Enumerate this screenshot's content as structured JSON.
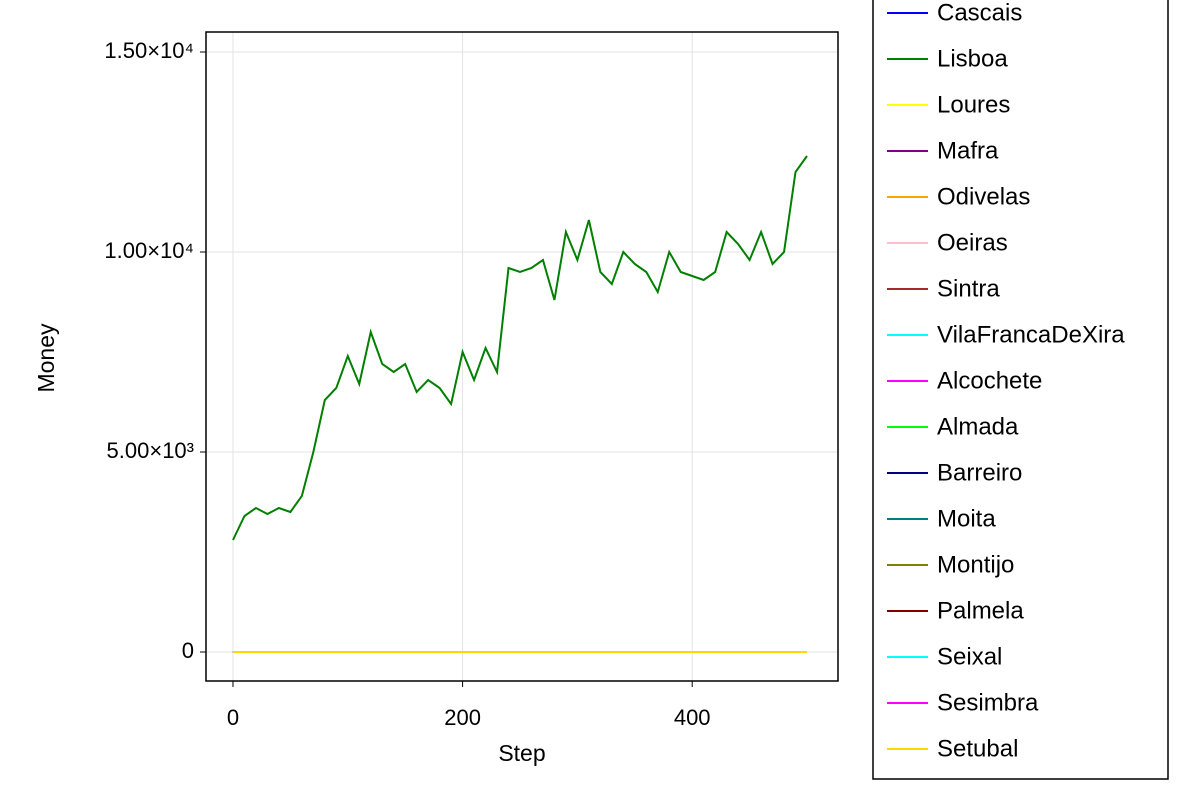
{
  "chart_data": {
    "type": "line",
    "xlabel": "Step",
    "ylabel": "Money",
    "xlim": [
      -23.5,
      527
    ],
    "ylim": [
      -725,
      15500
    ],
    "xticks": [
      0,
      200,
      400
    ],
    "yticks": [
      {
        "value": 0,
        "label": "0"
      },
      {
        "value": 5000,
        "label": "5.00×10³"
      },
      {
        "value": 10000,
        "label": "1.00×10⁴"
      },
      {
        "value": 15000,
        "label": "1.50×10⁴"
      }
    ],
    "grid": true,
    "legend": "outside right",
    "x": [
      0,
      10,
      20,
      30,
      40,
      50,
      60,
      70,
      80,
      90,
      100,
      110,
      120,
      130,
      140,
      150,
      160,
      170,
      180,
      190,
      200,
      210,
      220,
      230,
      240,
      250,
      260,
      270,
      280,
      290,
      300,
      310,
      320,
      330,
      340,
      350,
      360,
      370,
      380,
      390,
      400,
      410,
      420,
      430,
      440,
      450,
      460,
      470,
      480,
      490,
      500
    ],
    "series": [
      {
        "name": "Cascais",
        "color": "#0000ff",
        "values": [
          0,
          0,
          0,
          0,
          0,
          0,
          0,
          0,
          0,
          0,
          0,
          0,
          0,
          0,
          0,
          0,
          0,
          0,
          0,
          0,
          0,
          0,
          0,
          0,
          0,
          0,
          0,
          0,
          0,
          0,
          0,
          0,
          0,
          0,
          0,
          0,
          0,
          0,
          0,
          0,
          0,
          0,
          0,
          0,
          0,
          0,
          0,
          0,
          0,
          0,
          0
        ]
      },
      {
        "name": "Lisboa",
        "color": "#008000",
        "values": [
          2800,
          3400,
          3600,
          3450,
          3600,
          3500,
          3900,
          5000,
          6300,
          6600,
          7400,
          6700,
          8000,
          7200,
          7000,
          7200,
          6500,
          6800,
          6600,
          6200,
          7500,
          6800,
          7600,
          7000,
          9600,
          9500,
          9600,
          9800,
          8800,
          10500,
          9800,
          10800,
          9500,
          9200,
          10000,
          9700,
          9500,
          9000,
          10000,
          9500,
          9400,
          9300,
          9500,
          10500,
          10200,
          9800,
          10500,
          9700,
          10000,
          12000,
          12400
        ]
      },
      {
        "name": "Loures",
        "color": "#ffff00",
        "values": [
          0,
          0,
          0,
          0,
          0,
          0,
          0,
          0,
          0,
          0,
          0,
          0,
          0,
          0,
          0,
          0,
          0,
          0,
          0,
          0,
          0,
          0,
          0,
          0,
          0,
          0,
          0,
          0,
          0,
          0,
          0,
          0,
          0,
          0,
          0,
          0,
          0,
          0,
          0,
          0,
          0,
          0,
          0,
          0,
          0,
          0,
          0,
          0,
          0,
          0,
          0
        ]
      },
      {
        "name": "Mafra",
        "color": "#800080",
        "values": [
          0,
          0,
          0,
          0,
          0,
          0,
          0,
          0,
          0,
          0,
          0,
          0,
          0,
          0,
          0,
          0,
          0,
          0,
          0,
          0,
          0,
          0,
          0,
          0,
          0,
          0,
          0,
          0,
          0,
          0,
          0,
          0,
          0,
          0,
          0,
          0,
          0,
          0,
          0,
          0,
          0,
          0,
          0,
          0,
          0,
          0,
          0,
          0,
          0,
          0,
          0
        ]
      },
      {
        "name": "Odivelas",
        "color": "#ffa500",
        "values": [
          0,
          0,
          0,
          0,
          0,
          0,
          0,
          0,
          0,
          0,
          0,
          0,
          0,
          0,
          0,
          0,
          0,
          0,
          0,
          0,
          0,
          0,
          0,
          0,
          0,
          0,
          0,
          0,
          0,
          0,
          0,
          0,
          0,
          0,
          0,
          0,
          0,
          0,
          0,
          0,
          0,
          0,
          0,
          0,
          0,
          0,
          0,
          0,
          0,
          0,
          0
        ]
      },
      {
        "name": "Oeiras",
        "color": "#ffc0cb",
        "values": [
          0,
          0,
          0,
          0,
          0,
          0,
          0,
          0,
          0,
          0,
          0,
          0,
          0,
          0,
          0,
          0,
          0,
          0,
          0,
          0,
          0,
          0,
          0,
          0,
          0,
          0,
          0,
          0,
          0,
          0,
          0,
          0,
          0,
          0,
          0,
          0,
          0,
          0,
          0,
          0,
          0,
          0,
          0,
          0,
          0,
          0,
          0,
          0,
          0,
          0,
          0
        ]
      },
      {
        "name": "Sintra",
        "color": "#a52a2a",
        "values": [
          0,
          0,
          0,
          0,
          0,
          0,
          0,
          0,
          0,
          0,
          0,
          0,
          0,
          0,
          0,
          0,
          0,
          0,
          0,
          0,
          0,
          0,
          0,
          0,
          0,
          0,
          0,
          0,
          0,
          0,
          0,
          0,
          0,
          0,
          0,
          0,
          0,
          0,
          0,
          0,
          0,
          0,
          0,
          0,
          0,
          0,
          0,
          0,
          0,
          0,
          0
        ]
      },
      {
        "name": "VilaFrancaDeXira",
        "color": "#00ffff",
        "values": [
          0,
          0,
          0,
          0,
          0,
          0,
          0,
          0,
          0,
          0,
          0,
          0,
          0,
          0,
          0,
          0,
          0,
          0,
          0,
          0,
          0,
          0,
          0,
          0,
          0,
          0,
          0,
          0,
          0,
          0,
          0,
          0,
          0,
          0,
          0,
          0,
          0,
          0,
          0,
          0,
          0,
          0,
          0,
          0,
          0,
          0,
          0,
          0,
          0,
          0,
          0
        ]
      },
      {
        "name": "Alcochete",
        "color": "#ff00ff",
        "values": [
          0,
          0,
          0,
          0,
          0,
          0,
          0,
          0,
          0,
          0,
          0,
          0,
          0,
          0,
          0,
          0,
          0,
          0,
          0,
          0,
          0,
          0,
          0,
          0,
          0,
          0,
          0,
          0,
          0,
          0,
          0,
          0,
          0,
          0,
          0,
          0,
          0,
          0,
          0,
          0,
          0,
          0,
          0,
          0,
          0,
          0,
          0,
          0,
          0,
          0,
          0
        ]
      },
      {
        "name": "Almada",
        "color": "#00ff00",
        "values": [
          0,
          0,
          0,
          0,
          0,
          0,
          0,
          0,
          0,
          0,
          0,
          0,
          0,
          0,
          0,
          0,
          0,
          0,
          0,
          0,
          0,
          0,
          0,
          0,
          0,
          0,
          0,
          0,
          0,
          0,
          0,
          0,
          0,
          0,
          0,
          0,
          0,
          0,
          0,
          0,
          0,
          0,
          0,
          0,
          0,
          0,
          0,
          0,
          0,
          0,
          0
        ]
      },
      {
        "name": "Barreiro",
        "color": "#000080",
        "values": [
          0,
          0,
          0,
          0,
          0,
          0,
          0,
          0,
          0,
          0,
          0,
          0,
          0,
          0,
          0,
          0,
          0,
          0,
          0,
          0,
          0,
          0,
          0,
          0,
          0,
          0,
          0,
          0,
          0,
          0,
          0,
          0,
          0,
          0,
          0,
          0,
          0,
          0,
          0,
          0,
          0,
          0,
          0,
          0,
          0,
          0,
          0,
          0,
          0,
          0,
          0
        ]
      },
      {
        "name": "Moita",
        "color": "#008080",
        "values": [
          0,
          0,
          0,
          0,
          0,
          0,
          0,
          0,
          0,
          0,
          0,
          0,
          0,
          0,
          0,
          0,
          0,
          0,
          0,
          0,
          0,
          0,
          0,
          0,
          0,
          0,
          0,
          0,
          0,
          0,
          0,
          0,
          0,
          0,
          0,
          0,
          0,
          0,
          0,
          0,
          0,
          0,
          0,
          0,
          0,
          0,
          0,
          0,
          0,
          0,
          0
        ]
      },
      {
        "name": "Montijo",
        "color": "#808000",
        "values": [
          0,
          0,
          0,
          0,
          0,
          0,
          0,
          0,
          0,
          0,
          0,
          0,
          0,
          0,
          0,
          0,
          0,
          0,
          0,
          0,
          0,
          0,
          0,
          0,
          0,
          0,
          0,
          0,
          0,
          0,
          0,
          0,
          0,
          0,
          0,
          0,
          0,
          0,
          0,
          0,
          0,
          0,
          0,
          0,
          0,
          0,
          0,
          0,
          0,
          0,
          0
        ]
      },
      {
        "name": "Palmela",
        "color": "#800000",
        "values": [
          0,
          0,
          0,
          0,
          0,
          0,
          0,
          0,
          0,
          0,
          0,
          0,
          0,
          0,
          0,
          0,
          0,
          0,
          0,
          0,
          0,
          0,
          0,
          0,
          0,
          0,
          0,
          0,
          0,
          0,
          0,
          0,
          0,
          0,
          0,
          0,
          0,
          0,
          0,
          0,
          0,
          0,
          0,
          0,
          0,
          0,
          0,
          0,
          0,
          0,
          0
        ]
      },
      {
        "name": "Seixal",
        "color": "#00ffff",
        "values": [
          0,
          0,
          0,
          0,
          0,
          0,
          0,
          0,
          0,
          0,
          0,
          0,
          0,
          0,
          0,
          0,
          0,
          0,
          0,
          0,
          0,
          0,
          0,
          0,
          0,
          0,
          0,
          0,
          0,
          0,
          0,
          0,
          0,
          0,
          0,
          0,
          0,
          0,
          0,
          0,
          0,
          0,
          0,
          0,
          0,
          0,
          0,
          0,
          0,
          0,
          0
        ]
      },
      {
        "name": "Sesimbra",
        "color": "#ff00ff",
        "values": [
          0,
          0,
          0,
          0,
          0,
          0,
          0,
          0,
          0,
          0,
          0,
          0,
          0,
          0,
          0,
          0,
          0,
          0,
          0,
          0,
          0,
          0,
          0,
          0,
          0,
          0,
          0,
          0,
          0,
          0,
          0,
          0,
          0,
          0,
          0,
          0,
          0,
          0,
          0,
          0,
          0,
          0,
          0,
          0,
          0,
          0,
          0,
          0,
          0,
          0,
          0
        ]
      },
      {
        "name": "Setubal",
        "color": "#ffd700",
        "values": [
          0,
          0,
          0,
          0,
          0,
          0,
          0,
          0,
          0,
          0,
          0,
          0,
          0,
          0,
          0,
          0,
          0,
          0,
          0,
          0,
          0,
          0,
          0,
          0,
          0,
          0,
          0,
          0,
          0,
          0,
          0,
          0,
          0,
          0,
          0,
          0,
          0,
          0,
          0,
          0,
          0,
          0,
          0,
          0,
          0,
          0,
          0,
          0,
          0,
          0,
          0
        ]
      }
    ]
  }
}
